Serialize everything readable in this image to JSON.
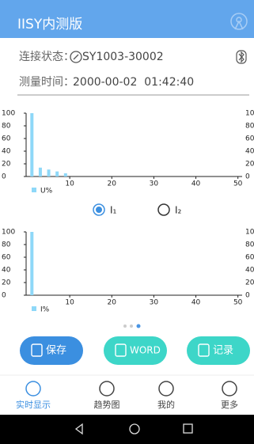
{
  "header": {
    "title": "IISY内测版"
  },
  "status": {
    "connection_label": "连接状态：",
    "device": "SY1003-30002",
    "time_label": "测量时间：",
    "time": "2000-00-02  01:42:40"
  },
  "charts": [
    {
      "type": "bar",
      "x": [
        1,
        3,
        5,
        7,
        9
      ],
      "series": [
        {
          "name": "U%",
          "color": "#8ed8f8",
          "values": [
            100,
            14,
            11,
            8,
            5
          ]
        }
      ],
      "xlim": [
        0,
        51
      ],
      "xticks": [
        10,
        20,
        30,
        40,
        50
      ],
      "ylim": [
        0,
        100
      ],
      "yticks": [
        0,
        20,
        40,
        60,
        80,
        100
      ]
    },
    {
      "type": "bar",
      "x": [
        1
      ],
      "series": [
        {
          "name": "I%",
          "color": "#8ed8f8",
          "values": [
            100
          ]
        }
      ],
      "xlim": [
        0,
        51
      ],
      "xticks": [
        10,
        20,
        30,
        40,
        50
      ],
      "ylim": [
        0,
        100
      ],
      "yticks": [
        0,
        20,
        40,
        60,
        80,
        100
      ]
    }
  ],
  "radio": [
    {
      "label": "I₁",
      "selected": true
    },
    {
      "label": "I₂",
      "selected": false
    }
  ],
  "buttons": [
    "保存",
    "WORD",
    "记录"
  ],
  "nav": [
    {
      "label": "实时显示",
      "active": true
    },
    {
      "label": "趋势图",
      "active": false
    },
    {
      "label": "我的",
      "active": false
    },
    {
      "label": "更多",
      "active": false
    }
  ]
}
